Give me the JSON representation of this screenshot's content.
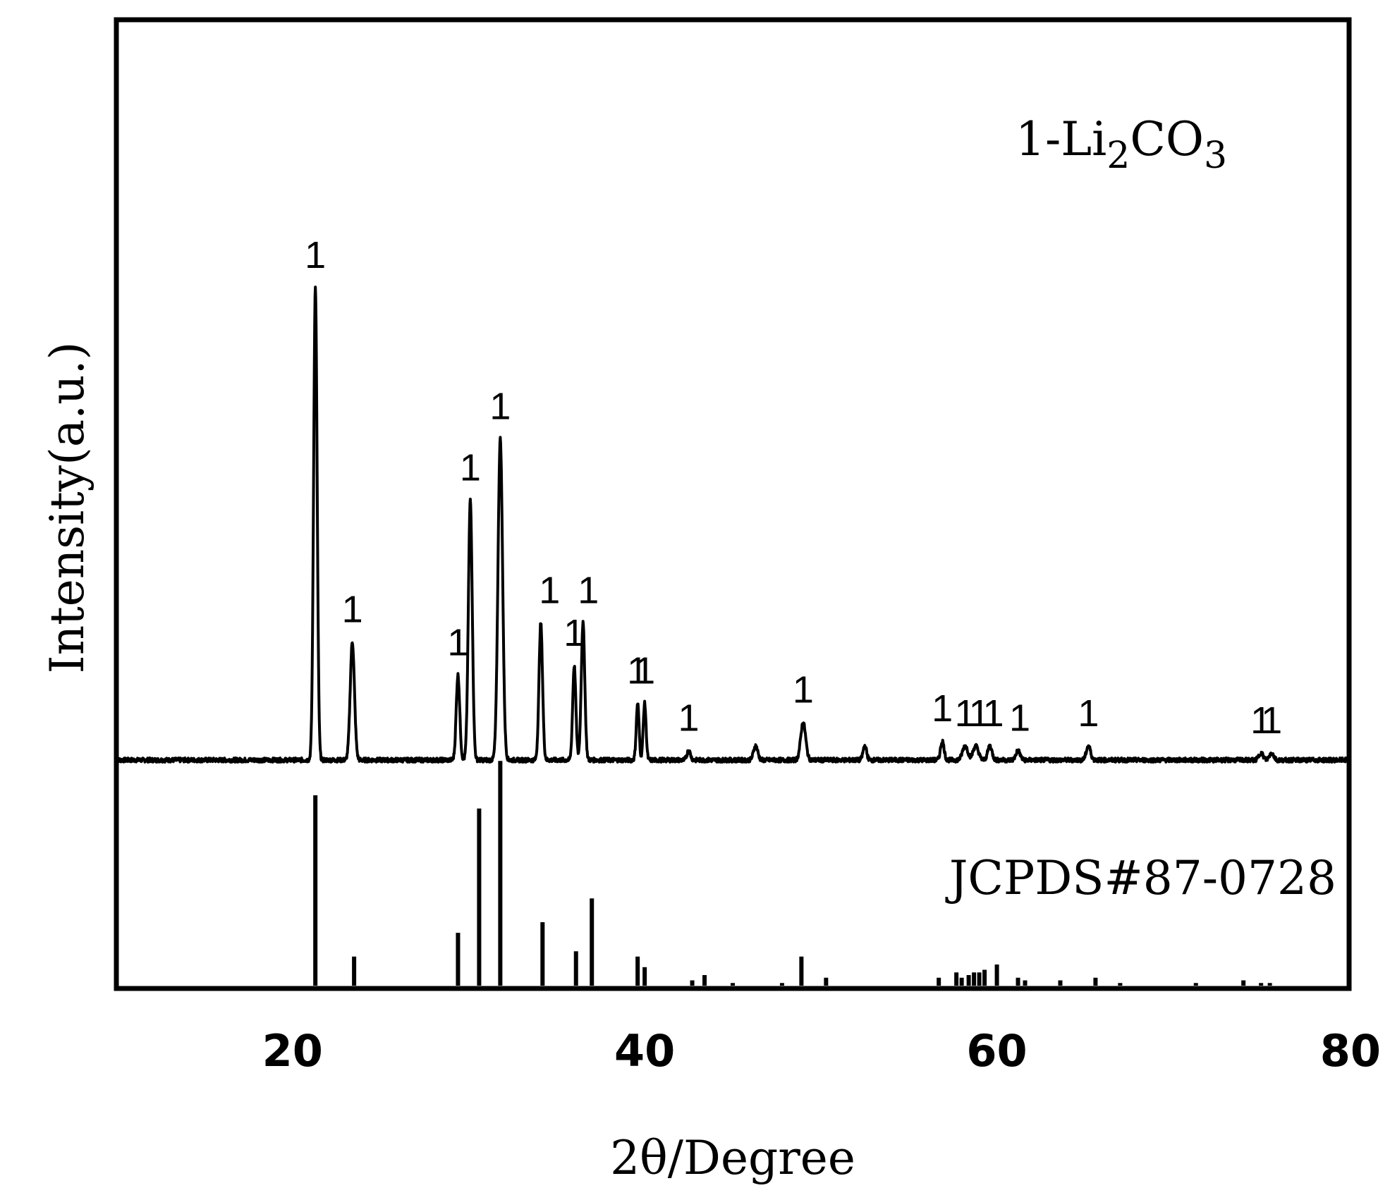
{
  "chart_data": {
    "type": "line",
    "xlabel": "2θ/Degree",
    "ylabel": "Intensity(a.u.)",
    "xlim": [
      10,
      80
    ],
    "xticks": [
      20,
      40,
      60,
      80
    ],
    "grid": false,
    "sample_label": {
      "prefix": "1-Li",
      "sub1": "2",
      "mid": "CO",
      "sub2": "3"
    },
    "reference_label": "JCPDS#87-0728",
    "pattern": {
      "baseline": 0.0,
      "peaks": [
        {
          "x": 21.3,
          "y": 100,
          "w": 0.1
        },
        {
          "x": 23.4,
          "y": 25,
          "w": 0.12
        },
        {
          "x": 29.4,
          "y": 18,
          "w": 0.1
        },
        {
          "x": 30.1,
          "y": 55,
          "w": 0.11
        },
        {
          "x": 31.8,
          "y": 68,
          "w": 0.13
        },
        {
          "x": 34.1,
          "y": 29,
          "w": 0.1
        },
        {
          "x": 36.0,
          "y": 20,
          "w": 0.09
        },
        {
          "x": 36.5,
          "y": 29,
          "w": 0.1
        },
        {
          "x": 39.6,
          "y": 12,
          "w": 0.08
        },
        {
          "x": 40.0,
          "y": 12,
          "w": 0.08
        },
        {
          "x": 42.5,
          "y": 2,
          "w": 0.1
        },
        {
          "x": 46.3,
          "y": 3,
          "w": 0.12
        },
        {
          "x": 49.0,
          "y": 8,
          "w": 0.14
        },
        {
          "x": 52.5,
          "y": 3,
          "w": 0.1
        },
        {
          "x": 56.9,
          "y": 4,
          "w": 0.1
        },
        {
          "x": 58.2,
          "y": 3,
          "w": 0.15
        },
        {
          "x": 58.8,
          "y": 3,
          "w": 0.15
        },
        {
          "x": 59.6,
          "y": 3,
          "w": 0.12
        },
        {
          "x": 61.2,
          "y": 2,
          "w": 0.12
        },
        {
          "x": 65.2,
          "y": 3,
          "w": 0.12
        },
        {
          "x": 75.0,
          "y": 1.5,
          "w": 0.12
        },
        {
          "x": 75.6,
          "y": 1.5,
          "w": 0.12
        }
      ],
      "peak_labels": [
        {
          "x": 21.3,
          "y": 100,
          "text": "1"
        },
        {
          "x": 23.4,
          "y": 25,
          "text": "1"
        },
        {
          "x": 29.4,
          "y": 18,
          "text": "1"
        },
        {
          "x": 30.1,
          "y": 55,
          "text": "1"
        },
        {
          "x": 31.8,
          "y": 68,
          "text": "1"
        },
        {
          "x": 34.6,
          "y": 29,
          "text": "1"
        },
        {
          "x": 36.0,
          "y": 20,
          "text": "1"
        },
        {
          "x": 36.8,
          "y": 29,
          "text": "1"
        },
        {
          "x": 39.6,
          "y": 12,
          "text": "1"
        },
        {
          "x": 40.0,
          "y": 12,
          "text": "1"
        },
        {
          "x": 42.5,
          "y": 2,
          "text": "1"
        },
        {
          "x": 49.0,
          "y": 8,
          "text": "1"
        },
        {
          "x": 56.9,
          "y": 4,
          "text": "1"
        },
        {
          "x": 58.2,
          "y": 3,
          "text": "1"
        },
        {
          "x": 59.0,
          "y": 3,
          "text": "1"
        },
        {
          "x": 59.8,
          "y": 3,
          "text": "1"
        },
        {
          "x": 61.3,
          "y": 2,
          "text": "1"
        },
        {
          "x": 65.2,
          "y": 3,
          "text": "1"
        },
        {
          "x": 75.0,
          "y": 1.5,
          "text": "1"
        },
        {
          "x": 75.6,
          "y": 1.5,
          "text": "1"
        }
      ]
    },
    "reference": {
      "sticks": [
        {
          "x": 21.3,
          "y": 72
        },
        {
          "x": 23.5,
          "y": 11
        },
        {
          "x": 29.4,
          "y": 20
        },
        {
          "x": 30.6,
          "y": 67
        },
        {
          "x": 31.8,
          "y": 85
        },
        {
          "x": 34.2,
          "y": 24
        },
        {
          "x": 36.1,
          "y": 13
        },
        {
          "x": 37.0,
          "y": 33
        },
        {
          "x": 39.6,
          "y": 11
        },
        {
          "x": 40.0,
          "y": 7
        },
        {
          "x": 42.7,
          "y": 2
        },
        {
          "x": 43.4,
          "y": 4
        },
        {
          "x": 45.0,
          "y": 1
        },
        {
          "x": 47.8,
          "y": 1
        },
        {
          "x": 48.9,
          "y": 11
        },
        {
          "x": 50.3,
          "y": 3
        },
        {
          "x": 56.7,
          "y": 3
        },
        {
          "x": 57.7,
          "y": 5
        },
        {
          "x": 58.0,
          "y": 3
        },
        {
          "x": 58.4,
          "y": 4
        },
        {
          "x": 58.7,
          "y": 5
        },
        {
          "x": 59.0,
          "y": 5
        },
        {
          "x": 59.3,
          "y": 6
        },
        {
          "x": 60.0,
          "y": 8
        },
        {
          "x": 61.2,
          "y": 3
        },
        {
          "x": 61.6,
          "y": 2
        },
        {
          "x": 63.6,
          "y": 2
        },
        {
          "x": 65.6,
          "y": 3
        },
        {
          "x": 67.0,
          "y": 1
        },
        {
          "x": 71.3,
          "y": 1
        },
        {
          "x": 74.0,
          "y": 2
        },
        {
          "x": 75.0,
          "y": 1
        },
        {
          "x": 75.5,
          "y": 1
        }
      ]
    }
  }
}
